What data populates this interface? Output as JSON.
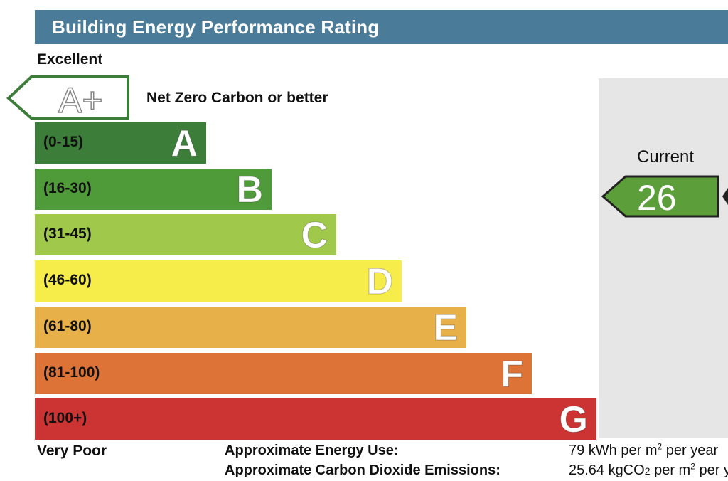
{
  "header": {
    "title": "Building Energy Performance Rating"
  },
  "scale": {
    "top_label": "Excellent",
    "bottom_label": "Very Poor"
  },
  "aplus": {
    "letter": "A+",
    "description": "Net Zero Carbon or better"
  },
  "current": {
    "label": "Current",
    "value": 26,
    "value_text": "26",
    "color": "#5c9e3a"
  },
  "chart_data": {
    "type": "bar",
    "categories": [
      "A",
      "B",
      "C",
      "D",
      "E",
      "F",
      "G"
    ],
    "ranges": [
      "(0-15)",
      "(16-30)",
      "(31-45)",
      "(46-60)",
      "(61-80)",
      "(81-100)",
      "(100+)"
    ],
    "colors": [
      "#3d7d3a",
      "#4f9b3a",
      "#a0c84a",
      "#f6ec4a",
      "#e8b048",
      "#dd7337",
      "#cc3333"
    ],
    "current_value": 26,
    "current_band": "B"
  },
  "footer": {
    "energy_label": "Approximate Energy Use:",
    "energy_value": "79 kWh per m",
    "energy_value_sup": "2",
    "energy_value_tail": " per year",
    "co2_label": "Approximate Carbon Dioxide Emissions:",
    "co2_value": "25.64 kgCO",
    "co2_value_sub": "2",
    "co2_value_mid": " per m",
    "co2_value_sup": "2",
    "co2_value_tail": " per year"
  }
}
